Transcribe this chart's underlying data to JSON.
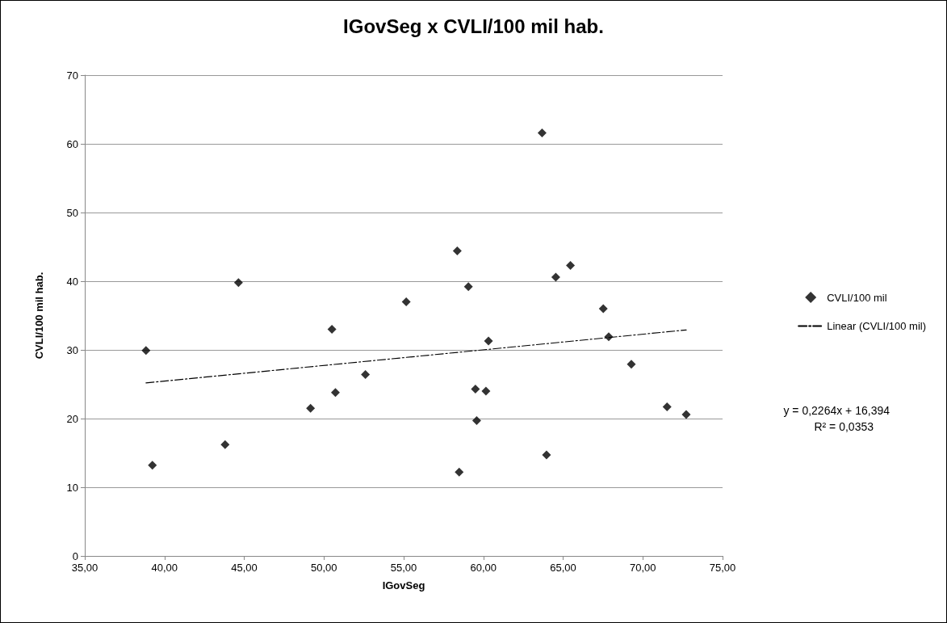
{
  "chart_data": {
    "type": "scatter",
    "title": "IGovSeg x CVLI/100 mil hab.",
    "xlabel": "IGovSeg",
    "ylabel": "CVLI/100 mil hab.",
    "xlim": [
      35,
      75
    ],
    "xticks": [
      {
        "value": 35,
        "label": "35,00"
      },
      {
        "value": 40,
        "label": "40,00"
      },
      {
        "value": 45,
        "label": "45,00"
      },
      {
        "value": 50,
        "label": "50,00"
      },
      {
        "value": 55,
        "label": "55,00"
      },
      {
        "value": 60,
        "label": "60,00"
      },
      {
        "value": 65,
        "label": "65,00"
      },
      {
        "value": 70,
        "label": "70,00"
      },
      {
        "value": 75,
        "label": "75,00"
      }
    ],
    "ylim": [
      0,
      70
    ],
    "yticks": [
      0,
      10,
      20,
      30,
      40,
      50,
      60,
      70
    ],
    "grid": "y",
    "legend": "right",
    "annotations": [
      "y = 0,2264x + 16,394",
      "R² = 0,0353"
    ],
    "series": [
      {
        "name": "CVLI/100 mil",
        "type": "scatter",
        "color": "#000000",
        "marker": "diamond",
        "x": [
          38.84,
          39.24,
          43.8,
          44.64,
          49.16,
          50.5,
          50.72,
          52.6,
          55.16,
          58.36,
          59.06,
          58.48,
          59.5,
          60.16,
          59.58,
          60.32,
          63.68,
          63.96,
          64.54,
          65.46,
          67.52,
          67.86,
          69.28,
          71.52,
          72.72
        ],
        "values": [
          29.9,
          13.2,
          16.2,
          39.8,
          21.5,
          33.0,
          23.8,
          26.4,
          37.0,
          44.4,
          39.2,
          12.2,
          24.3,
          24.0,
          19.7,
          31.3,
          61.6,
          14.7,
          40.6,
          42.3,
          36.0,
          31.9,
          27.9,
          21.7,
          20.6
        ]
      },
      {
        "name": "Linear (CVLI/100 mil)",
        "type": "line",
        "color": "#000000",
        "marker": "none",
        "line_style": "dashed",
        "x": [
          38.84,
          72.72
        ],
        "values": [
          25.2,
          32.9
        ]
      }
    ]
  }
}
